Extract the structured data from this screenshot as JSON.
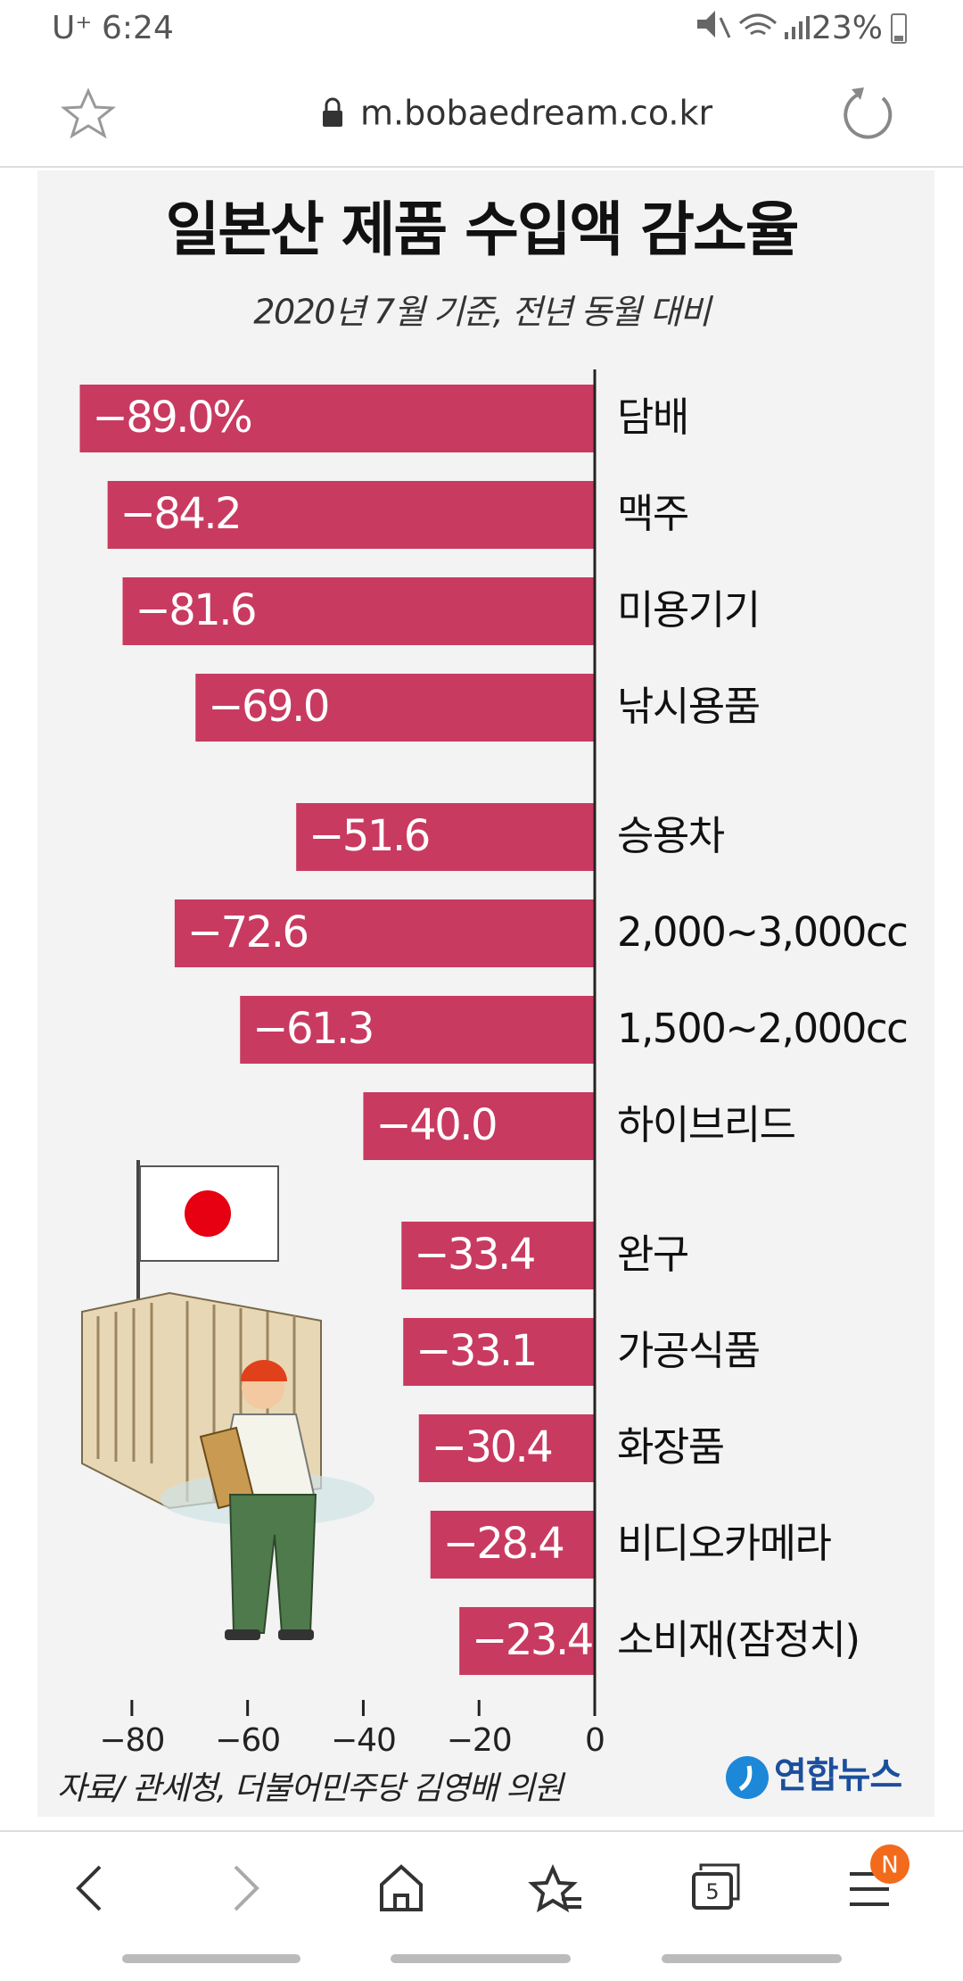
{
  "status_bar": {
    "carrier": "U⁺",
    "time": "6:24",
    "battery": "23%"
  },
  "browser": {
    "url": "m.bobaedream.co.kr",
    "tab_count": "5",
    "badge": "N"
  },
  "chart_data": {
    "type": "bar",
    "title": "일본산 제품 수입액 감소율",
    "subtitle": "2020년 7월 기준, 전년 동월 대비",
    "categories": [
      "담배",
      "맥주",
      "미용기기",
      "낚시용품",
      "승용차",
      "2,000~3,000cc",
      "1,500~2,000cc",
      "하이브리드",
      "완구",
      "가공식품",
      "화장품",
      "비디오카메라",
      "소비재(잠정치)"
    ],
    "values": [
      -89.0,
      -84.2,
      -81.6,
      -69.0,
      -51.6,
      -72.6,
      -61.3,
      -40.0,
      -33.4,
      -33.1,
      -30.4,
      -28.4,
      -23.4
    ],
    "value_labels": [
      "−89.0%",
      "−84.2",
      "−81.6",
      "−69.0",
      "−51.6",
      "−72.6",
      "−61.3",
      "−40.0",
      "−33.4",
      "−33.1",
      "−30.4",
      "−28.4",
      "−23.4"
    ],
    "color": "#c93a60",
    "xlim": [
      -90,
      0
    ],
    "xticks": [
      {
        "value": -80,
        "label": "−80"
      },
      {
        "value": -60,
        "label": "−60"
      },
      {
        "value": -40,
        "label": "−40"
      },
      {
        "value": -20,
        "label": "−20"
      },
      0
    ],
    "source": "자료/ 관세청, 더불어민주당 김영배 의원",
    "credit": "연합뉴스"
  }
}
